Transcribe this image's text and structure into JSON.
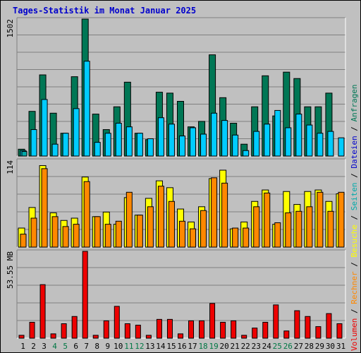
{
  "title": "Tages-Statistik im Monat Januar 2025",
  "colors": {
    "background": "#c0c0c0",
    "panel": "#c0c0c0",
    "title": "#0000cc",
    "weekday": "#000000",
    "weekend": "#007744",
    "anfragen": "#007755",
    "dateien": "#00ccff",
    "seiten": "#00aaaa",
    "besuche": "#ffff00",
    "rechner": "#ff8800",
    "volumen": "#ee0000"
  },
  "chart_data": [
    {
      "type": "bar",
      "panel": "top",
      "axis_max_label": "1502",
      "ylim": [
        0,
        1502
      ],
      "categories": [
        "1",
        "2",
        "3",
        "4",
        "5",
        "6",
        "7",
        "8",
        "9",
        "10",
        "11",
        "12",
        "13",
        "14",
        "15",
        "16",
        "17",
        "18",
        "19",
        "20",
        "21",
        "22",
        "23",
        "24",
        "25",
        "26",
        "27",
        "28",
        "29",
        "30",
        "31"
      ],
      "weekend_days": [
        "4",
        "5",
        "11",
        "12",
        "18",
        "19",
        "25",
        "26"
      ],
      "series": [
        {
          "name": "Anfragen",
          "color": "#007755",
          "values": [
            75,
            490,
            890,
            470,
            250,
            870,
            1502,
            460,
            290,
            540,
            810,
            250,
            180,
            700,
            690,
            600,
            320,
            380,
            1110,
            640,
            360,
            130,
            540,
            880,
            440,
            920,
            850,
            540,
            540,
            690,
            0
          ]
        },
        {
          "name": "Dateien",
          "color": "#00ccff",
          "values": [
            60,
            290,
            620,
            130,
            250,
            520,
            1040,
            150,
            250,
            360,
            320,
            250,
            190,
            420,
            350,
            220,
            310,
            240,
            470,
            390,
            230,
            60,
            270,
            350,
            500,
            310,
            460,
            340,
            250,
            270,
            200
          ]
        },
        {
          "name": "Seiten",
          "color": "#00aaaa",
          "values": [
            50,
            0,
            0,
            0,
            0,
            0,
            0,
            0,
            0,
            0,
            0,
            0,
            0,
            0,
            0,
            0,
            0,
            0,
            0,
            0,
            0,
            0,
            0,
            0,
            0,
            0,
            0,
            0,
            0,
            0,
            0
          ]
        }
      ]
    },
    {
      "type": "bar",
      "panel": "middle",
      "axis_max_label": "114",
      "ylim": [
        0,
        114
      ],
      "categories": [
        "1",
        "2",
        "3",
        "4",
        "5",
        "6",
        "7",
        "8",
        "9",
        "10",
        "11",
        "12",
        "13",
        "14",
        "15",
        "16",
        "17",
        "18",
        "19",
        "20",
        "21",
        "22",
        "23",
        "24",
        "25",
        "26",
        "27",
        "28",
        "29",
        "30",
        "31"
      ],
      "series": [
        {
          "name": "Besuche",
          "color": "#ffff00",
          "values": [
            25,
            52,
            107,
            45,
            35,
            38,
            92,
            40,
            46,
            30,
            65,
            42,
            64,
            87,
            78,
            50,
            33,
            53,
            90,
            101,
            24,
            33,
            60,
            75,
            30,
            73,
            56,
            73,
            75,
            60,
            70
          ]
        },
        {
          "name": "Rechner",
          "color": "#ff8800",
          "values": [
            17,
            38,
            103,
            40,
            27,
            30,
            86,
            40,
            30,
            34,
            72,
            42,
            53,
            80,
            60,
            34,
            24,
            48,
            91,
            84,
            25,
            25,
            53,
            71,
            32,
            45,
            47,
            53,
            72,
            47,
            72
          ]
        }
      ]
    },
    {
      "type": "bar",
      "panel": "bottom",
      "axis_max_label": "53.55 MB",
      "ylim": [
        0,
        60
      ],
      "categories": [
        "1",
        "2",
        "3",
        "4",
        "5",
        "6",
        "7",
        "8",
        "9",
        "10",
        "11",
        "12",
        "13",
        "14",
        "15",
        "16",
        "17",
        "18",
        "19",
        "20",
        "21",
        "22",
        "23",
        "24",
        "25",
        "26",
        "27",
        "28",
        "29",
        "30",
        "31"
      ],
      "series": [
        {
          "name": "Volumen",
          "color": "#ee0000",
          "values": [
            2,
            11,
            37,
            3,
            10,
            15,
            60,
            2,
            12,
            22,
            10,
            9,
            2,
            13,
            13,
            3,
            12,
            12,
            24,
            11,
            12,
            2,
            7,
            11,
            23,
            5,
            19,
            15,
            8,
            17,
            10
          ]
        }
      ]
    }
  ],
  "legend": [
    {
      "label": "Volumen",
      "color": "#ee0000"
    },
    {
      "label": "Rechner",
      "color": "#ff8800"
    },
    {
      "label": "Besuche",
      "color": "#ffff00"
    },
    {
      "label": "Seiten",
      "color": "#00aaaa"
    },
    {
      "label": "Dateien",
      "color": "#0000cc"
    },
    {
      "label": "Anfragen",
      "color": "#007755"
    }
  ],
  "separator": "/"
}
